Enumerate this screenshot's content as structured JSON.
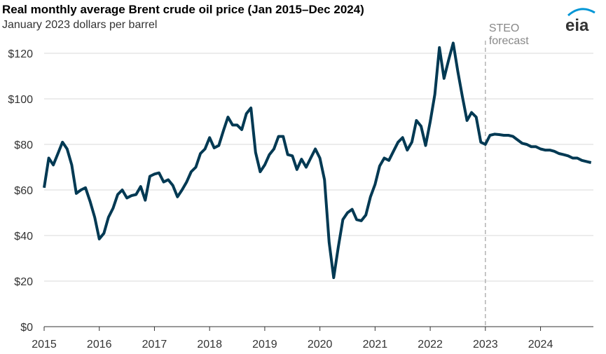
{
  "chart_data": {
    "type": "line",
    "title": "Real monthly average Brent crude oil price (Jan 2015–Dec 2024)",
    "subtitle": "January 2023 dollars per barrel",
    "xlabel": "",
    "ylabel": "",
    "ylim": [
      0,
      130
    ],
    "yticks": [
      "$0",
      "$20",
      "$40",
      "$60",
      "$80",
      "$100",
      "$120"
    ],
    "ytick_values": [
      0,
      20,
      40,
      60,
      80,
      100,
      120
    ],
    "xticks": [
      "2015",
      "2016",
      "2017",
      "2018",
      "2019",
      "2020",
      "2021",
      "2022",
      "2023",
      "2024"
    ],
    "grid": "horizontal",
    "annotation": {
      "line1": "STEO",
      "line2": "forecast",
      "at": "2023-01"
    },
    "logo": "eia",
    "series_color": "#003953",
    "start": "2015-01",
    "values": [
      61,
      74,
      71,
      76,
      81,
      78,
      71,
      58.5,
      60,
      61,
      55,
      48,
      38.5,
      41,
      48,
      52,
      58,
      60,
      56.5,
      57.5,
      58,
      61.5,
      55.5,
      66,
      67,
      67.5,
      63.5,
      64.5,
      62,
      57,
      60,
      63.5,
      68,
      70,
      76,
      78,
      83,
      78.5,
      79.5,
      86,
      92,
      88.5,
      88.5,
      86.5,
      93.5,
      96,
      76.5,
      68,
      71,
      75.5,
      78,
      83.5,
      83.5,
      75.5,
      75,
      69,
      73.5,
      70,
      74,
      78,
      74,
      64.5,
      37,
      21.5,
      35,
      47,
      50,
      51.5,
      47,
      46.5,
      49,
      57,
      62.5,
      70.5,
      74,
      73,
      77,
      81,
      83,
      77.5,
      81,
      90.5,
      88,
      79.5,
      90,
      102,
      122.5,
      109,
      117,
      124.5,
      112,
      101,
      90.5,
      94,
      92,
      81,
      80,
      84,
      84.5,
      84.3,
      84,
      84,
      83.5,
      82,
      80.5,
      80,
      79,
      79,
      78,
      77.5,
      77.5,
      77,
      76,
      75.5,
      75,
      74,
      74,
      73,
      72.5,
      72
    ]
  }
}
